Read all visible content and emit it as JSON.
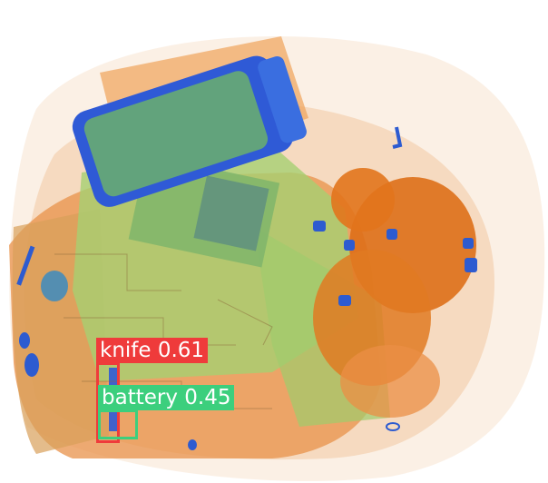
{
  "image": {
    "kind": "x-ray baggage scan with object-detection overlay",
    "palette": {
      "background": "#ffffff",
      "organic": "#e37a2a",
      "mixed": "#8fc466",
      "metal": "#3a62d8"
    }
  },
  "detections": [
    {
      "label": "knife",
      "score": "0.61",
      "caption": "knife 0.61",
      "color": "#ef3b3b"
    },
    {
      "label": "battery",
      "score": "0.45",
      "caption": "battery 0.45",
      "color": "#3ccf7d"
    }
  ]
}
